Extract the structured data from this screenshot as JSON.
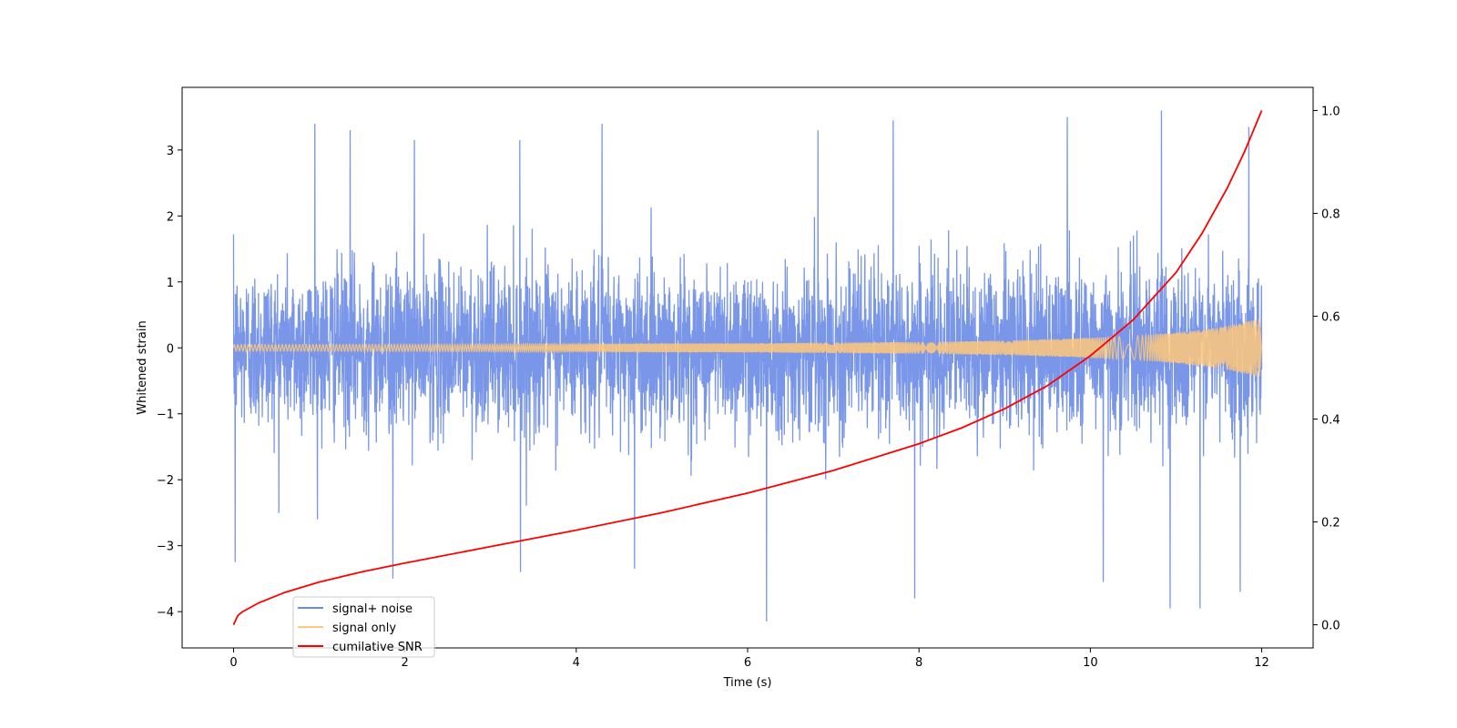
{
  "chart_data": {
    "type": "line",
    "title": "",
    "xlabel": "Time (s)",
    "ylabel": "Whitened strain",
    "y2label": "",
    "xlim": [
      -0.6,
      12.6
    ],
    "ylim": [
      -4.55,
      3.95
    ],
    "y2lim": [
      -0.045,
      1.045
    ],
    "xticks": [
      0,
      2,
      4,
      6,
      8,
      10,
      12
    ],
    "xtick_labels": [
      "0",
      "2",
      "4",
      "6",
      "8",
      "10",
      "12"
    ],
    "yticks": [
      -4,
      -3,
      -2,
      -1,
      0,
      1,
      2,
      3
    ],
    "ytick_labels": [
      "−4",
      "−3",
      "−2",
      "−1",
      "0",
      "1",
      "2",
      "3"
    ],
    "y2ticks": [
      0.0,
      0.2,
      0.4,
      0.6,
      0.8,
      1.0
    ],
    "y2tick_labels": [
      "0.0",
      "0.2",
      "0.4",
      "0.6",
      "0.8",
      "1.0"
    ],
    "grid": false,
    "legend_position": "lower-left",
    "series": [
      {
        "name": "signal+ noise",
        "color": "#6a8be6",
        "axis": "left",
        "description_values": {
          "x_range": [
            0,
            12
          ],
          "typical_amplitude": 1.5,
          "peaks": [
            {
              "x": 0.95,
              "y": 3.4
            },
            {
              "x": 1.36,
              "y": 3.3
            },
            {
              "x": 2.11,
              "y": 3.15
            },
            {
              "x": 3.34,
              "y": 3.15
            },
            {
              "x": 4.3,
              "y": 3.4
            },
            {
              "x": 6.82,
              "y": 3.3
            },
            {
              "x": 7.7,
              "y": 3.45
            },
            {
              "x": 9.73,
              "y": 3.5
            },
            {
              "x": 10.83,
              "y": 3.6
            },
            {
              "x": 11.85,
              "y": 3.35
            }
          ],
          "troughs": [
            {
              "x": 0.02,
              "y": -3.25
            },
            {
              "x": 1.86,
              "y": -3.5
            },
            {
              "x": 3.35,
              "y": -3.4
            },
            {
              "x": 4.68,
              "y": -3.35
            },
            {
              "x": 6.22,
              "y": -4.15
            },
            {
              "x": 7.95,
              "y": -3.8
            },
            {
              "x": 10.15,
              "y": -3.55
            },
            {
              "x": 10.93,
              "y": -3.95
            },
            {
              "x": 11.28,
              "y": -3.95
            },
            {
              "x": 11.75,
              "y": -3.7
            }
          ]
        }
      },
      {
        "name": "signal only",
        "color": "#ffc87a",
        "axis": "left",
        "envelope": {
          "x": [
            0,
            2,
            4,
            6,
            8,
            9,
            10,
            10.5,
            11,
            11.5,
            12
          ],
          "amplitude": [
            0.05,
            0.055,
            0.06,
            0.07,
            0.09,
            0.11,
            0.15,
            0.18,
            0.23,
            0.31,
            0.45
          ]
        }
      },
      {
        "name": "cumilative SNR",
        "color": "#ff0000",
        "axis": "right",
        "x": [
          0,
          0.05,
          0.1,
          0.3,
          0.6,
          1,
          1.5,
          2,
          3,
          4,
          5,
          6,
          7,
          8,
          8.5,
          9,
          9.5,
          10,
          10.5,
          11,
          11.3,
          11.6,
          11.8,
          12
        ],
        "values": [
          0.0,
          0.018,
          0.025,
          0.043,
          0.063,
          0.083,
          0.103,
          0.12,
          0.152,
          0.184,
          0.218,
          0.256,
          0.3,
          0.352,
          0.383,
          0.42,
          0.465,
          0.523,
          0.593,
          0.685,
          0.76,
          0.85,
          0.92,
          1.0
        ]
      }
    ]
  }
}
